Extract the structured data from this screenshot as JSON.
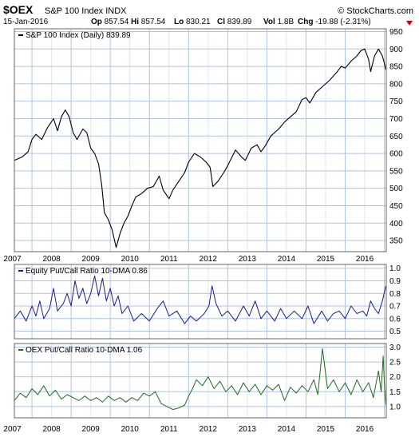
{
  "header": {
    "symbol": "$OEX",
    "name": "S&P 100 Index INDX",
    "date": "15-Jan-2016",
    "brand": "© StockCharts.com",
    "stats": [
      {
        "label": "Op",
        "value": "857.54"
      },
      {
        "label": "Hi",
        "value": "857.54"
      },
      {
        "label": "Lo",
        "value": "830.21"
      },
      {
        "label": "Cl",
        "value": "839.89"
      },
      {
        "label": "Vol",
        "value": "1.8B"
      },
      {
        "label": "Chg",
        "value": "-19.88 (-2.31%)"
      }
    ]
  },
  "colors": {
    "price": "#000000",
    "equity": "#1a1a8c",
    "oex": "#1f6b1f",
    "grid": "#b0c4de",
    "change_marker": "#cc0000"
  },
  "chart_data": [
    {
      "type": "line",
      "legend": "S&P 100 Index (Daily) 839.89",
      "x_ticks": [
        "2007",
        "2008",
        "2009",
        "2010",
        "2011",
        "2012",
        "2013",
        "2014",
        "2015",
        "2016"
      ],
      "xlim": [
        2006.55,
        2016.05
      ],
      "y_ticks": [
        350,
        400,
        450,
        500,
        550,
        600,
        650,
        700,
        750,
        800,
        850,
        900,
        950
      ],
      "ylim": [
        318,
        958
      ],
      "series": [
        {
          "points": [
            [
              2006.55,
              580
            ],
            [
              2006.75,
              590
            ],
            [
              2006.9,
              605
            ],
            [
              2007.0,
              640
            ],
            [
              2007.1,
              655
            ],
            [
              2007.25,
              640
            ],
            [
              2007.4,
              675
            ],
            [
              2007.55,
              700
            ],
            [
              2007.65,
              665
            ],
            [
              2007.75,
              705
            ],
            [
              2007.85,
              725
            ],
            [
              2007.95,
              705
            ],
            [
              2008.05,
              660
            ],
            [
              2008.15,
              640
            ],
            [
              2008.3,
              670
            ],
            [
              2008.4,
              660
            ],
            [
              2008.5,
              615
            ],
            [
              2008.6,
              600
            ],
            [
              2008.7,
              570
            ],
            [
              2008.78,
              510
            ],
            [
              2008.85,
              430
            ],
            [
              2008.95,
              410
            ],
            [
              2009.05,
              380
            ],
            [
              2009.15,
              330
            ],
            [
              2009.25,
              370
            ],
            [
              2009.35,
              400
            ],
            [
              2009.45,
              420
            ],
            [
              2009.55,
              450
            ],
            [
              2009.65,
              475
            ],
            [
              2009.8,
              485
            ],
            [
              2009.95,
              500
            ],
            [
              2010.1,
              505
            ],
            [
              2010.25,
              535
            ],
            [
              2010.35,
              495
            ],
            [
              2010.5,
              470
            ],
            [
              2010.6,
              495
            ],
            [
              2010.75,
              520
            ],
            [
              2010.9,
              545
            ],
            [
              2011.0,
              575
            ],
            [
              2011.15,
              600
            ],
            [
              2011.3,
              590
            ],
            [
              2011.45,
              575
            ],
            [
              2011.55,
              560
            ],
            [
              2011.62,
              505
            ],
            [
              2011.75,
              520
            ],
            [
              2011.9,
              545
            ],
            [
              2012.0,
              565
            ],
            [
              2012.2,
              610
            ],
            [
              2012.35,
              590
            ],
            [
              2012.45,
              580
            ],
            [
              2012.6,
              615
            ],
            [
              2012.75,
              625
            ],
            [
              2012.85,
              605
            ],
            [
              2012.95,
              620
            ],
            [
              2013.1,
              650
            ],
            [
              2013.3,
              670
            ],
            [
              2013.45,
              690
            ],
            [
              2013.6,
              705
            ],
            [
              2013.75,
              720
            ],
            [
              2013.9,
              755
            ],
            [
              2014.0,
              760
            ],
            [
              2014.1,
              745
            ],
            [
              2014.25,
              775
            ],
            [
              2014.45,
              795
            ],
            [
              2014.6,
              810
            ],
            [
              2014.8,
              835
            ],
            [
              2014.9,
              850
            ],
            [
              2015.0,
              845
            ],
            [
              2015.15,
              865
            ],
            [
              2015.3,
              880
            ],
            [
              2015.4,
              895
            ],
            [
              2015.5,
              900
            ],
            [
              2015.6,
              870
            ],
            [
              2015.65,
              835
            ],
            [
              2015.75,
              880
            ],
            [
              2015.85,
              900
            ],
            [
              2015.95,
              880
            ],
            [
              2016.0,
              860
            ],
            [
              2016.04,
              840
            ]
          ]
        }
      ]
    },
    {
      "type": "line",
      "legend": "Equity Put/Call Ratio 10-DMA 0.86",
      "y_ticks": [
        0.5,
        0.6,
        0.7,
        0.8,
        0.9,
        1.0
      ],
      "ylim": [
        0.44,
        1.03
      ],
      "series": [
        {
          "points": [
            [
              2006.55,
              0.6
            ],
            [
              2006.7,
              0.66
            ],
            [
              2006.85,
              0.58
            ],
            [
              2007.0,
              0.7
            ],
            [
              2007.1,
              0.62
            ],
            [
              2007.2,
              0.74
            ],
            [
              2007.3,
              0.6
            ],
            [
              2007.45,
              0.68
            ],
            [
              2007.55,
              0.84
            ],
            [
              2007.65,
              0.66
            ],
            [
              2007.8,
              0.72
            ],
            [
              2007.9,
              0.8
            ],
            [
              2008.0,
              0.7
            ],
            [
              2008.1,
              0.9
            ],
            [
              2008.2,
              0.76
            ],
            [
              2008.3,
              0.84
            ],
            [
              2008.4,
              0.72
            ],
            [
              2008.5,
              0.8
            ],
            [
              2008.6,
              0.94
            ],
            [
              2008.7,
              0.78
            ],
            [
              2008.8,
              0.92
            ],
            [
              2008.9,
              0.74
            ],
            [
              2009.0,
              0.84
            ],
            [
              2009.1,
              0.7
            ],
            [
              2009.2,
              0.78
            ],
            [
              2009.3,
              0.64
            ],
            [
              2009.45,
              0.7
            ],
            [
              2009.6,
              0.58
            ],
            [
              2009.8,
              0.64
            ],
            [
              2010.0,
              0.58
            ],
            [
              2010.2,
              0.68
            ],
            [
              2010.35,
              0.74
            ],
            [
              2010.5,
              0.62
            ],
            [
              2010.7,
              0.66
            ],
            [
              2010.9,
              0.56
            ],
            [
              2011.05,
              0.62
            ],
            [
              2011.2,
              0.58
            ],
            [
              2011.4,
              0.64
            ],
            [
              2011.52,
              0.7
            ],
            [
              2011.6,
              0.86
            ],
            [
              2011.7,
              0.72
            ],
            [
              2011.85,
              0.62
            ],
            [
              2012.0,
              0.66
            ],
            [
              2012.2,
              0.58
            ],
            [
              2012.4,
              0.7
            ],
            [
              2012.55,
              0.62
            ],
            [
              2012.7,
              0.74
            ],
            [
              2012.85,
              0.6
            ],
            [
              2013.0,
              0.66
            ],
            [
              2013.2,
              0.58
            ],
            [
              2013.35,
              0.68
            ],
            [
              2013.5,
              0.6
            ],
            [
              2013.7,
              0.66
            ],
            [
              2013.9,
              0.6
            ],
            [
              2014.05,
              0.7
            ],
            [
              2014.2,
              0.56
            ],
            [
              2014.4,
              0.66
            ],
            [
              2014.55,
              0.58
            ],
            [
              2014.7,
              0.64
            ],
            [
              2014.85,
              0.66
            ],
            [
              2015.0,
              0.6
            ],
            [
              2015.15,
              0.7
            ],
            [
              2015.3,
              0.64
            ],
            [
              2015.45,
              0.66
            ],
            [
              2015.55,
              0.62
            ],
            [
              2015.65,
              0.74
            ],
            [
              2015.75,
              0.68
            ],
            [
              2015.85,
              0.64
            ],
            [
              2015.95,
              0.74
            ],
            [
              2016.04,
              0.86
            ]
          ]
        }
      ]
    },
    {
      "type": "line",
      "legend": "OEX Put/Call Ratio 10-DMA 1.06",
      "y_ticks": [
        1.0,
        1.5,
        2.0,
        2.5,
        3.0
      ],
      "ylim": [
        0.62,
        3.12
      ],
      "series": [
        {
          "points": [
            [
              2006.55,
              1.2
            ],
            [
              2006.7,
              1.45
            ],
            [
              2006.85,
              1.3
            ],
            [
              2007.0,
              1.6
            ],
            [
              2007.15,
              1.4
            ],
            [
              2007.3,
              1.7
            ],
            [
              2007.45,
              1.35
            ],
            [
              2007.6,
              1.55
            ],
            [
              2007.75,
              1.25
            ],
            [
              2007.9,
              1.4
            ],
            [
              2008.05,
              1.3
            ],
            [
              2008.2,
              1.2
            ],
            [
              2008.35,
              1.35
            ],
            [
              2008.5,
              1.2
            ],
            [
              2008.65,
              1.3
            ],
            [
              2008.8,
              1.15
            ],
            [
              2008.95,
              1.35
            ],
            [
              2009.1,
              1.2
            ],
            [
              2009.25,
              1.3
            ],
            [
              2009.4,
              1.15
            ],
            [
              2009.55,
              1.3
            ],
            [
              2009.7,
              1.2
            ],
            [
              2009.85,
              1.45
            ],
            [
              2010.0,
              1.35
            ],
            [
              2010.15,
              1.5
            ],
            [
              2010.3,
              1.1
            ],
            [
              2010.45,
              1.0
            ],
            [
              2010.6,
              0.9
            ],
            [
              2010.75,
              0.95
            ],
            [
              2010.9,
              1.05
            ],
            [
              2011.0,
              1.35
            ],
            [
              2011.1,
              1.6
            ],
            [
              2011.2,
              1.9
            ],
            [
              2011.35,
              1.7
            ],
            [
              2011.5,
              2.0
            ],
            [
              2011.65,
              1.6
            ],
            [
              2011.8,
              1.85
            ],
            [
              2011.95,
              1.5
            ],
            [
              2012.1,
              1.7
            ],
            [
              2012.25,
              1.4
            ],
            [
              2012.4,
              1.8
            ],
            [
              2012.55,
              1.5
            ],
            [
              2012.7,
              1.75
            ],
            [
              2012.85,
              1.4
            ],
            [
              2013.0,
              1.7
            ],
            [
              2013.15,
              1.55
            ],
            [
              2013.3,
              1.75
            ],
            [
              2013.45,
              1.2
            ],
            [
              2013.6,
              1.65
            ],
            [
              2013.75,
              1.45
            ],
            [
              2013.9,
              1.7
            ],
            [
              2014.05,
              1.5
            ],
            [
              2014.2,
              1.9
            ],
            [
              2014.3,
              1.4
            ],
            [
              2014.42,
              2.95
            ],
            [
              2014.55,
              1.6
            ],
            [
              2014.7,
              1.9
            ],
            [
              2014.85,
              1.5
            ],
            [
              2015.0,
              1.8
            ],
            [
              2015.15,
              1.4
            ],
            [
              2015.3,
              1.9
            ],
            [
              2015.45,
              1.5
            ],
            [
              2015.6,
              1.8
            ],
            [
              2015.72,
              1.3
            ],
            [
              2015.85,
              2.2
            ],
            [
              2015.92,
              1.5
            ],
            [
              2015.97,
              2.7
            ],
            [
              2016.01,
              1.6
            ],
            [
              2016.04,
              1.06
            ]
          ]
        }
      ]
    }
  ]
}
